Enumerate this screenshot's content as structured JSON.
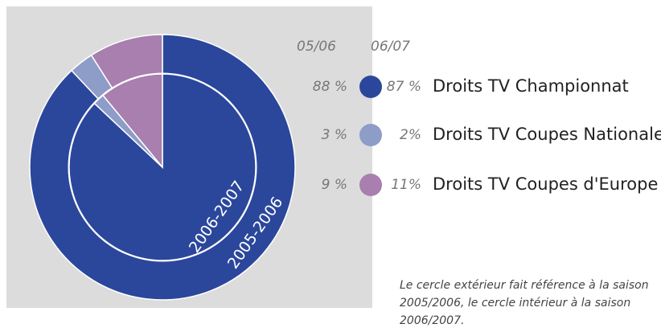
{
  "chart_data": {
    "type": "pie",
    "categories": [
      "Droits TV Championnat",
      "Droits TV Coupes Nationales",
      "Droits TV Coupes d'Europe"
    ],
    "colors": [
      "#2b479c",
      "#8e9cc8",
      "#a87fae"
    ],
    "series": [
      {
        "name": "2005-2006",
        "label": "05/06",
        "ring": "outer",
        "values": [
          88,
          3,
          9
        ],
        "value_labels": [
          "88 %",
          "3 %",
          "9 %"
        ]
      },
      {
        "name": "2006-2007",
        "label": "06/07",
        "ring": "inner",
        "values": [
          87,
          2,
          11
        ],
        "value_labels": [
          "87 %",
          "2%",
          "11%"
        ]
      }
    ],
    "note": [
      "Le cercle extérieur fait référence à la saison",
      "2005/2006, le cercle intérieur à la saison",
      "2006/2007."
    ]
  }
}
